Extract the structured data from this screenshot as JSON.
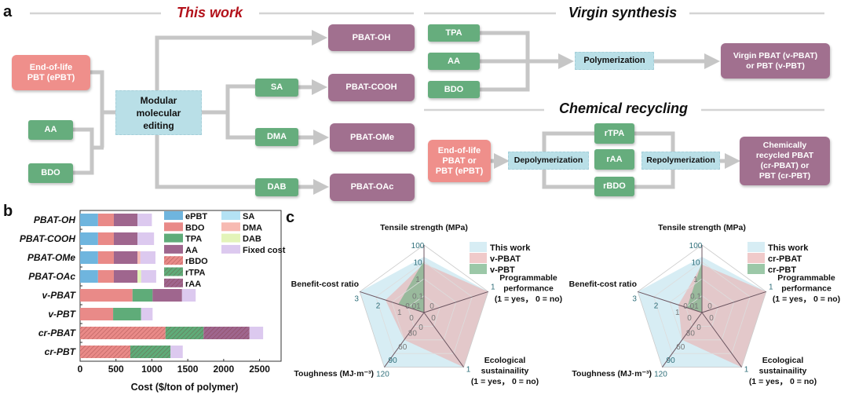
{
  "panel_labels": {
    "a": "a",
    "b": "b",
    "c": "c"
  },
  "diagram": {
    "this_work": {
      "title": "This work",
      "title_color": "#b3121b",
      "eol_pbt": [
        "End-of-life",
        "PBT (ePBT)"
      ],
      "aa": "AA",
      "bdo": "BDO",
      "editing": [
        "Modular",
        "molecular",
        "editing"
      ],
      "sa": "SA",
      "dma": "DMA",
      "dab": "DAB",
      "products": [
        "PBAT-OH",
        "PBAT-COOH",
        "PBAT-OMe",
        "PBAT-OAc"
      ]
    },
    "virgin": {
      "title": "Virgin synthesis",
      "tpa": "TPA",
      "aa": "AA",
      "bdo": "BDO",
      "process": "Polymerization",
      "product": [
        "Virgin PBAT (v-PBAT)",
        "or PBT (v-PBT)"
      ]
    },
    "recycling": {
      "title": "Chemical recycling",
      "eol": [
        "End-of-life",
        "PBAT or",
        "PBT (ePBT)"
      ],
      "depoly": "Depolymerization",
      "rtpa": "rTPA",
      "raa": "rAA",
      "rbdo": "rBDO",
      "repoly": "Repolymerization",
      "product": [
        "Chemically",
        "recycled PBAT",
        "(cr-PBAT) or",
        "PBT (cr-PBT)"
      ]
    },
    "colors": {
      "feedstock": "#66ad7d",
      "product": "#a1708f",
      "end_of_life": "#ef8f8b",
      "process": "#b9dfe7",
      "connector": "#c6c6c6"
    }
  },
  "chart_data": [
    {
      "type": "bar",
      "orientation": "horizontal",
      "stacked": true,
      "xlabel": "Cost ($/ton of polymer)",
      "xlim": [
        0,
        2800
      ],
      "xticks": [
        "0",
        "500",
        "1000",
        "1500",
        "2000",
        "2500"
      ],
      "categories": [
        "PBAT-OH",
        "PBAT-COOH",
        "PBAT-OMe",
        "PBAT-OAc",
        "v-PBAT",
        "v-PBT",
        "cr-PBAT",
        "cr-PBT"
      ],
      "series": [
        {
          "name": "ePBT",
          "color": "#6fb5de",
          "hatched": false,
          "values": [
            250,
            250,
            250,
            250,
            0,
            0,
            0,
            0
          ]
        },
        {
          "name": "BDO",
          "color": "#e98a88",
          "hatched": false,
          "values": [
            220,
            220,
            220,
            220,
            730,
            460,
            0,
            0
          ]
        },
        {
          "name": "TPA",
          "color": "#5fac79",
          "hatched": false,
          "values": [
            0,
            0,
            0,
            0,
            280,
            390,
            0,
            0
          ]
        },
        {
          "name": "AA",
          "color": "#9f668e",
          "hatched": false,
          "values": [
            330,
            330,
            330,
            330,
            410,
            0,
            0,
            0
          ]
        },
        {
          "name": "rBDO",
          "color": "#e98a88",
          "hatched": true,
          "values": [
            0,
            0,
            0,
            0,
            0,
            0,
            1190,
            700
          ]
        },
        {
          "name": "rTPA",
          "color": "#5fac79",
          "hatched": true,
          "values": [
            0,
            0,
            0,
            0,
            0,
            0,
            530,
            560
          ]
        },
        {
          "name": "rAA",
          "color": "#9f668e",
          "hatched": true,
          "values": [
            0,
            0,
            0,
            0,
            0,
            0,
            640,
            0
          ]
        },
        {
          "name": "SA",
          "color": "#b4e2f4",
          "hatched": false,
          "values": [
            0,
            0,
            0,
            0,
            0,
            0,
            0,
            0
          ]
        },
        {
          "name": "DMA",
          "color": "#f7bab2",
          "hatched": false,
          "values": [
            0,
            0,
            40,
            0,
            0,
            0,
            0,
            0
          ]
        },
        {
          "name": "DAB",
          "color": "#e3f4b9",
          "hatched": false,
          "values": [
            0,
            0,
            0,
            50,
            0,
            0,
            0,
            0
          ]
        },
        {
          "name": "Fixed cost",
          "color": "#dcc9ef",
          "hatched": false,
          "values": [
            200,
            230,
            210,
            210,
            190,
            160,
            190,
            170
          ]
        }
      ],
      "legend_position": "top-right"
    },
    {
      "type": "radar",
      "axes": [
        {
          "label_lines": [
            "Tensile strength (MPa)"
          ],
          "scale": "log",
          "range": [
            0.01,
            100
          ],
          "ticks": [
            "0.01",
            "0.1",
            "1",
            "10",
            "100"
          ]
        },
        {
          "label_lines": [
            "Programmable",
            "performance",
            "(1 = yes， 0 = no)"
          ],
          "scale": "linear",
          "range": [
            0,
            1
          ],
          "ticks": [
            "0",
            "1"
          ]
        },
        {
          "label_lines": [
            "Ecological",
            "sustainaility",
            "(1 = yes， 0 = no)"
          ],
          "scale": "linear",
          "range": [
            0,
            1
          ],
          "ticks": [
            "0",
            "1"
          ]
        },
        {
          "label_lines": [
            "Toughness (MJ·m⁻³)"
          ],
          "scale": "linear",
          "range": [
            0,
            120
          ],
          "ticks": [
            "0",
            "30",
            "60",
            "90",
            "120"
          ]
        },
        {
          "label_lines": [
            "Benefit-cost ratio"
          ],
          "scale": "linear",
          "range": [
            0,
            3
          ],
          "ticks": [
            "0",
            "1",
            "2",
            "3"
          ]
        }
      ],
      "series": [
        {
          "name": "This work",
          "color": "#d3ebf3",
          "values": [
            20,
            1,
            1,
            120,
            3
          ]
        },
        {
          "name": "v-PBAT",
          "color": "#e9b3b3",
          "values": [
            8,
            1,
            1,
            60,
            1.8
          ]
        },
        {
          "name": "v-PBT",
          "color": "#72b083",
          "values": [
            12,
            0,
            0,
            0,
            1.2
          ]
        }
      ],
      "legend_position": "top-right"
    },
    {
      "type": "radar",
      "axes": [
        {
          "label_lines": [
            "Tensile strength (MPa)"
          ],
          "scale": "log",
          "range": [
            0.01,
            100
          ],
          "ticks": [
            "0.01",
            "0.1",
            "1",
            "10",
            "100"
          ]
        },
        {
          "label_lines": [
            "Programmable",
            "performance",
            "(1 = yes， 0 = no)"
          ],
          "scale": "linear",
          "range": [
            0,
            1
          ],
          "ticks": [
            "0",
            "1"
          ]
        },
        {
          "label_lines": [
            "Ecological",
            "sustainaility",
            "(1 = yes， 0 = no)"
          ],
          "scale": "linear",
          "range": [
            0,
            1
          ],
          "ticks": [
            "0",
            "1"
          ]
        },
        {
          "label_lines": [
            "Toughness (MJ·m⁻³)"
          ],
          "scale": "linear",
          "range": [
            0,
            120
          ],
          "ticks": [
            "0",
            "30",
            "60",
            "90",
            "120"
          ]
        },
        {
          "label_lines": [
            "Benefit-cost ratio"
          ],
          "scale": "linear",
          "range": [
            0,
            3
          ],
          "ticks": [
            "0",
            "1",
            "2",
            "3"
          ]
        }
      ],
      "series": [
        {
          "name": "This work",
          "color": "#d3ebf3",
          "values": [
            20,
            1,
            1,
            120,
            3
          ]
        },
        {
          "name": "cr-PBAT",
          "color": "#e9b3b3",
          "values": [
            7,
            1,
            1,
            60,
            1.1
          ]
        },
        {
          "name": "cr-PBT",
          "color": "#72b083",
          "values": [
            10,
            0,
            0,
            0,
            0.7
          ]
        }
      ],
      "legend_position": "top-right"
    }
  ]
}
